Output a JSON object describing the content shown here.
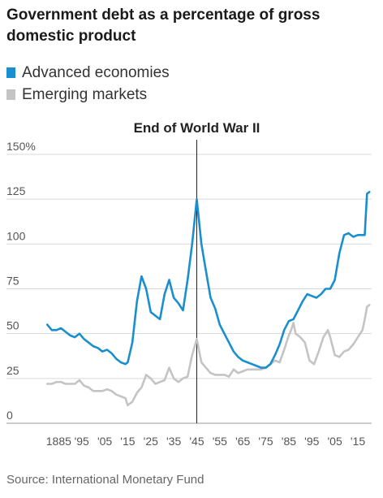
{
  "chart_data": {
    "type": "line",
    "title": "Government debt as a percentage of gross domestic product",
    "legend": [
      {
        "name": "Advanced economies",
        "color": "#1a8fcf"
      },
      {
        "name": "Emerging markets",
        "color": "#c4c4c4"
      }
    ],
    "ylim": [
      0,
      150
    ],
    "yticks": [
      {
        "value": 150,
        "label": "150%"
      },
      {
        "value": 125,
        "label": "125"
      },
      {
        "value": 100,
        "label": "100"
      },
      {
        "value": 75,
        "label": "75"
      },
      {
        "value": 50,
        "label": "50"
      },
      {
        "value": 25,
        "label": "25"
      },
      {
        "value": 0,
        "label": "0"
      }
    ],
    "xlim": [
      1875,
      2021
    ],
    "xticks": [
      {
        "value": 1885,
        "label": "1885"
      },
      {
        "value": 1895,
        "label": "'95"
      },
      {
        "value": 1905,
        "label": "'05"
      },
      {
        "value": 1915,
        "label": "'15"
      },
      {
        "value": 1925,
        "label": "'25"
      },
      {
        "value": 1935,
        "label": "'35"
      },
      {
        "value": 1945,
        "label": "'45"
      },
      {
        "value": 1955,
        "label": "'55"
      },
      {
        "value": 1965,
        "label": "'65"
      },
      {
        "value": 1975,
        "label": "'75"
      },
      {
        "value": 1985,
        "label": "'85"
      },
      {
        "value": 1995,
        "label": "'95"
      },
      {
        "value": 2005,
        "label": "'05"
      },
      {
        "value": 2015,
        "label": "'15"
      }
    ],
    "annotation": {
      "x": 1945,
      "label": "End of World War II"
    },
    "grid": true,
    "series": [
      {
        "name": "Emerging markets",
        "color": "#c4c4c4",
        "x": [
          1880,
          1882,
          1884,
          1886,
          1888,
          1890,
          1892,
          1894,
          1896,
          1898,
          1900,
          1902,
          1904,
          1906,
          1908,
          1910,
          1912,
          1914,
          1915,
          1917,
          1919,
          1921,
          1923,
          1925,
          1927,
          1929,
          1931,
          1933,
          1935,
          1937,
          1939,
          1941,
          1943,
          1945,
          1947,
          1949,
          1951,
          1953,
          1955,
          1957,
          1959,
          1961,
          1963,
          1965,
          1967,
          1969,
          1971,
          1973,
          1975,
          1977,
          1979,
          1981,
          1983,
          1985,
          1986,
          1987,
          1988,
          1990,
          1992,
          1994,
          1996,
          1998,
          2000,
          2002,
          2003,
          2005,
          2007,
          2009,
          2011,
          2013,
          2015,
          2017,
          2018,
          2019,
          2020
        ],
        "y": [
          22,
          22,
          23,
          23,
          22,
          22,
          22,
          24,
          21,
          20,
          18,
          18,
          18,
          19,
          18,
          16,
          15,
          14,
          10,
          12,
          17,
          20,
          27,
          25,
          22,
          23,
          24,
          31,
          25,
          23,
          25,
          26,
          38,
          47,
          34,
          31,
          28,
          27,
          27,
          27,
          26,
          30,
          28,
          29,
          30,
          30,
          30,
          30,
          31,
          33,
          35,
          34,
          41,
          49,
          52,
          56,
          50,
          48,
          45,
          35,
          33,
          40,
          48,
          52,
          48,
          38,
          37,
          40,
          41,
          44,
          48,
          52,
          58,
          65,
          66
        ]
      },
      {
        "name": "Advanced economies",
        "color": "#1a8fcf",
        "x": [
          1880,
          1882,
          1884,
          1886,
          1888,
          1890,
          1892,
          1894,
          1896,
          1898,
          1900,
          1902,
          1904,
          1906,
          1908,
          1910,
          1912,
          1914,
          1915,
          1917,
          1919,
          1921,
          1923,
          1925,
          1927,
          1929,
          1931,
          1933,
          1935,
          1937,
          1939,
          1941,
          1943,
          1945,
          1947,
          1949,
          1951,
          1953,
          1955,
          1957,
          1959,
          1961,
          1963,
          1965,
          1967,
          1969,
          1971,
          1973,
          1975,
          1977,
          1979,
          1981,
          1983,
          1985,
          1987,
          1989,
          1991,
          1993,
          1995,
          1997,
          1999,
          2001,
          2003,
          2005,
          2007,
          2009,
          2011,
          2013,
          2015,
          2017,
          2018,
          2019,
          2020
        ],
        "y": [
          55,
          52,
          52,
          53,
          51,
          49,
          48,
          50,
          47,
          45,
          43,
          42,
          40,
          41,
          39,
          36,
          34,
          33,
          34,
          45,
          68,
          82,
          75,
          62,
          60,
          58,
          72,
          80,
          70,
          67,
          63,
          80,
          100,
          125,
          100,
          85,
          70,
          64,
          55,
          50,
          45,
          40,
          37,
          35,
          34,
          33,
          32,
          31,
          31,
          33,
          38,
          44,
          52,
          57,
          58,
          63,
          68,
          72,
          71,
          70,
          72,
          75,
          75,
          80,
          95,
          105,
          106,
          104,
          105,
          105,
          105,
          128,
          129
        ]
      }
    ]
  },
  "source": "Source: International Monetary Fund"
}
